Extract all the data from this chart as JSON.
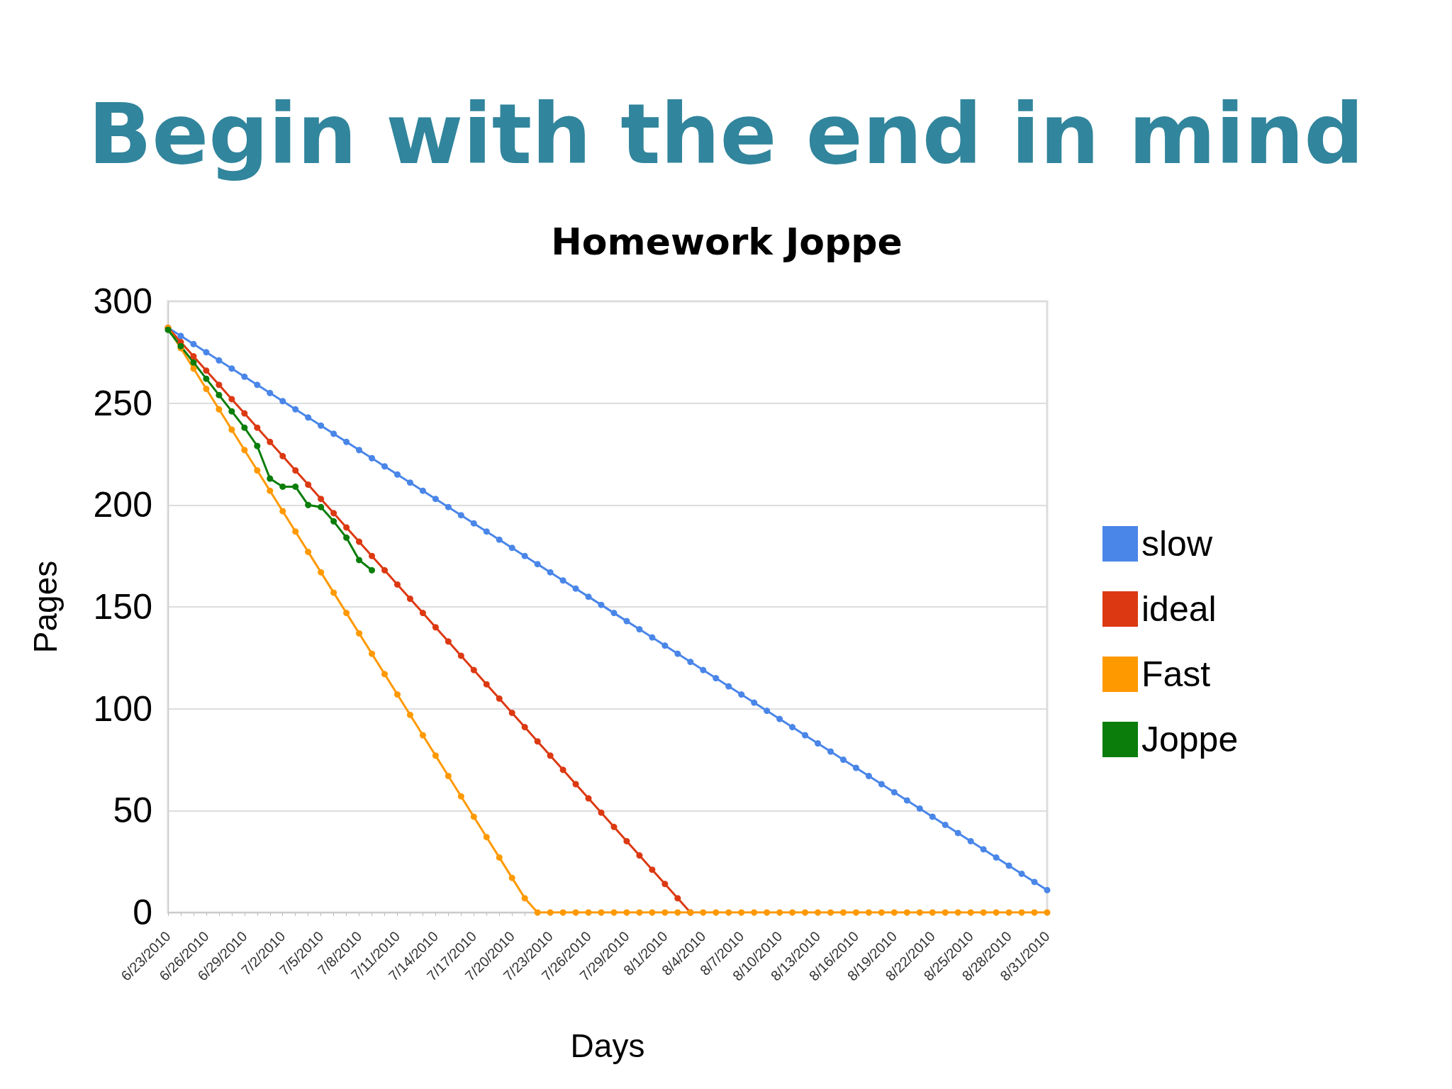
{
  "chart_data": {
    "type": "line",
    "title": "Begin with the end in mind",
    "subtitle": "Homework Joppe",
    "xlabel": "Days",
    "ylabel": "Pages",
    "categories": [
      "6/23/2010",
      null,
      null,
      "6/26/2010",
      null,
      null,
      "6/29/2010",
      null,
      null,
      "7/2/2010",
      null,
      null,
      "7/5/2010",
      null,
      null,
      "7/8/2010",
      null,
      null,
      "7/11/2010",
      null,
      null,
      "7/14/2010",
      null,
      null,
      "7/17/2010",
      null,
      null,
      "7/20/2010",
      null,
      null,
      "7/23/2010",
      null,
      null,
      "7/26/2010",
      null,
      null,
      "7/29/2010",
      null,
      null,
      "8/1/2010",
      null,
      null,
      "8/4/2010",
      null,
      null,
      "8/7/2010",
      null,
      null,
      "8/10/2010",
      null,
      null,
      "8/13/2010",
      null,
      null,
      "8/16/2010",
      null,
      null,
      "8/19/2010",
      null,
      null,
      "8/22/2010",
      null,
      null,
      "8/25/2010",
      null,
      null,
      "8/28/2010",
      null,
      null,
      "8/31/2010"
    ],
    "series": [
      {
        "name": "slow",
        "color": "#4a86e8",
        "values": [
          287,
          283,
          279,
          275,
          271,
          267,
          263,
          259,
          255,
          251,
          247,
          243,
          239,
          235,
          231,
          227,
          223,
          219,
          215,
          211,
          207,
          203,
          199,
          195,
          191,
          187,
          183,
          179,
          175,
          171,
          167,
          163,
          159,
          155,
          151,
          147,
          143,
          139,
          135,
          131,
          127,
          123,
          119,
          115,
          111,
          107,
          103,
          99,
          95,
          91,
          87,
          83,
          79,
          75,
          71,
          67,
          63,
          59,
          55,
          51,
          47,
          43,
          39,
          35,
          31,
          27,
          23,
          19,
          15,
          11
        ]
      },
      {
        "name": "ideal",
        "color": "#dc3912",
        "values": [
          287,
          280,
          273,
          266,
          259,
          252,
          245,
          238,
          231,
          224,
          217,
          210,
          203,
          196,
          189,
          182,
          175,
          168,
          161,
          154,
          147,
          140,
          133,
          126,
          119,
          112,
          105,
          98,
          91,
          84,
          77,
          70,
          63,
          56,
          49,
          42,
          35,
          28,
          21,
          14,
          7,
          0,
          null,
          null,
          null,
          null,
          null,
          null,
          null,
          null,
          null,
          null,
          null,
          null,
          null,
          null,
          null,
          null,
          null,
          null,
          null,
          null,
          null,
          null,
          null,
          null,
          null,
          null,
          null,
          null
        ]
      },
      {
        "name": "Fast",
        "color": "#ff9900",
        "values": [
          287,
          277,
          267,
          257,
          247,
          237,
          227,
          217,
          207,
          197,
          187,
          177,
          167,
          157,
          147,
          137,
          127,
          117,
          107,
          97,
          87,
          77,
          67,
          57,
          47,
          37,
          27,
          17,
          7,
          0,
          0,
          0,
          0,
          0,
          0,
          0,
          0,
          0,
          0,
          0,
          0,
          0,
          0,
          0,
          0,
          0,
          0,
          0,
          0,
          0,
          0,
          0,
          0,
          0,
          0,
          0,
          0,
          0,
          0,
          0,
          0,
          0,
          0,
          0,
          0,
          0,
          0,
          0,
          0,
          0
        ]
      },
      {
        "name": "Joppe",
        "color": "#0a7d0a",
        "values": [
          286,
          278,
          270,
          262,
          254,
          246,
          238,
          229,
          213,
          209,
          209,
          200,
          199,
          192,
          184,
          173,
          168,
          null,
          null,
          null,
          null,
          null,
          null,
          null,
          null,
          null,
          null,
          null,
          null,
          null,
          null,
          null,
          null,
          null,
          null,
          null,
          null,
          null,
          null,
          null,
          null,
          null,
          null,
          null,
          null,
          null,
          null,
          null,
          null,
          null,
          null,
          null,
          null,
          null,
          null,
          null,
          null,
          null,
          null,
          null,
          null,
          null,
          null,
          null,
          null,
          null,
          null,
          null,
          null,
          null
        ]
      }
    ],
    "ylim": [
      0,
      300
    ],
    "yticks": [
      0,
      50,
      100,
      150,
      200,
      250,
      300
    ],
    "grid": "y",
    "legend": "right",
    "marker": "circle",
    "line_style": "solid"
  }
}
